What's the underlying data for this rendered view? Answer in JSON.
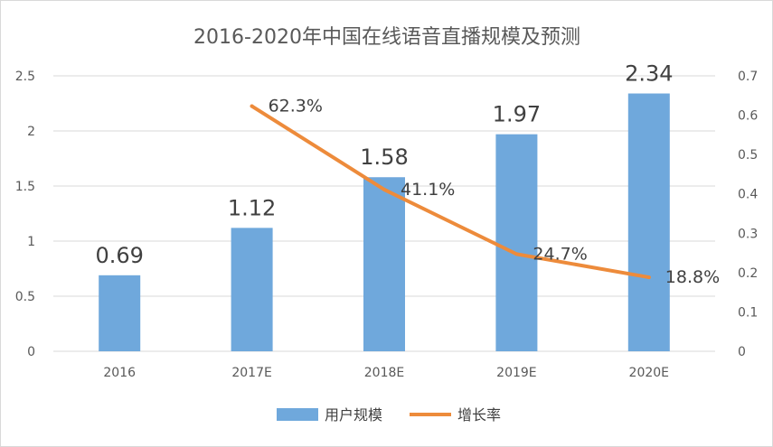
{
  "chart_data": {
    "type": "bar",
    "title": "2016-2020年中国在线语音直播规模及预测",
    "categories": [
      "2016",
      "2017E",
      "2018E",
      "2019E",
      "2020E"
    ],
    "series": [
      {
        "name": "用户规模",
        "type": "bar",
        "axis": "left",
        "color": "#6FA8DC",
        "values": [
          0.69,
          1.12,
          1.58,
          1.97,
          2.34
        ],
        "labels": [
          "0.69",
          "1.12",
          "1.58",
          "1.97",
          "2.34"
        ]
      },
      {
        "name": "增长率",
        "type": "line",
        "axis": "right",
        "color": "#ED8B3B",
        "values": [
          null,
          0.623,
          0.411,
          0.247,
          0.188
        ],
        "labels": [
          "",
          "62.3%",
          "41.1%",
          "24.7%",
          "18.8%"
        ]
      }
    ],
    "y_left": {
      "min": 0,
      "max": 2.5,
      "ticks": [
        "0",
        "0.5",
        "1",
        "1.5",
        "2",
        "2.5"
      ]
    },
    "y_right": {
      "min": 0,
      "max": 0.7,
      "ticks": [
        "0",
        "0.1",
        "0.2",
        "0.3",
        "0.4",
        "0.5",
        "0.6",
        "0.7"
      ]
    },
    "grid": true,
    "legend_position": "bottom"
  }
}
